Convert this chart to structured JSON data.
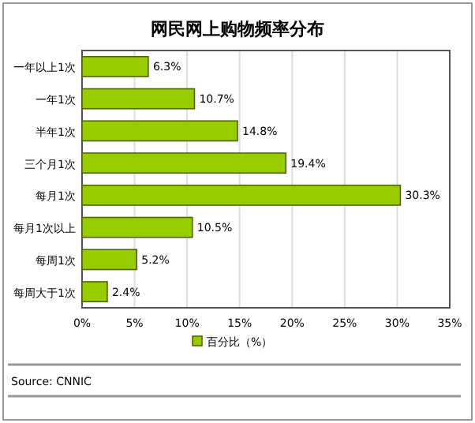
{
  "chart_data": {
    "type": "bar",
    "orientation": "horizontal",
    "title": "网民网上购物频率分布",
    "categories": [
      "一年以上1次",
      "一年1次",
      "半年1次",
      "三个月1次",
      "每月1次",
      "每月1次以上",
      "每周1次",
      "每周大于1次"
    ],
    "series": [
      {
        "name": "百分比（%）",
        "color": "#99cc00",
        "values": [
          6.3,
          10.7,
          14.8,
          19.4,
          30.3,
          10.5,
          5.2,
          2.4
        ],
        "value_labels": [
          "6.3%",
          "10.7%",
          "14.8%",
          "19.4%",
          "30.3%",
          "10.5%",
          "5.2%",
          "2.4%"
        ]
      }
    ],
    "xlim": [
      0,
      35
    ],
    "xticks": [
      {
        "value": 0,
        "label": "0%"
      },
      {
        "value": 5,
        "label": "5%"
      },
      {
        "value": 10,
        "label": "10%"
      },
      {
        "value": 15,
        "label": "15%"
      },
      {
        "value": 20,
        "label": "20%"
      },
      {
        "value": 25,
        "label": "25%"
      },
      {
        "value": 30,
        "label": "30%"
      },
      {
        "value": 35,
        "label": "35%"
      }
    ],
    "grid": "x",
    "legend": "bottom",
    "annotations": [
      "Source: CNNIC"
    ]
  }
}
